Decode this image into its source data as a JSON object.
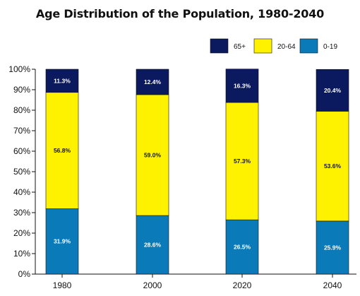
{
  "chart_data": {
    "type": "bar",
    "stacked": true,
    "title": "Age Distribution of the Population, 1980-2040",
    "categories": [
      "1980",
      "2000",
      "2020",
      "2040"
    ],
    "series": [
      {
        "name": "0-19",
        "color": "#0a7ab8",
        "values": [
          31.9,
          28.6,
          26.5,
          25.9
        ],
        "labels": [
          "31.9%",
          "28.6%",
          "26.5%",
          "25.9%"
        ]
      },
      {
        "name": "20-64",
        "color": "#fff200",
        "values": [
          56.8,
          59.0,
          57.3,
          53.6
        ],
        "labels": [
          "56.8%",
          "59.0%",
          "57.3%",
          "53.6%"
        ]
      },
      {
        "name": "65+",
        "color": "#0b1a5e",
        "values": [
          11.3,
          12.4,
          16.3,
          20.4
        ],
        "labels": [
          "11.3%",
          "12.4%",
          "16.3%",
          "20.4%"
        ]
      }
    ],
    "legend_order": [
      "65+",
      "20-64",
      "0-19"
    ],
    "yticks": [
      "0%",
      "10%",
      "20%",
      "30%",
      "40%",
      "50%",
      "60%",
      "70%",
      "80%",
      "90%",
      "100%"
    ],
    "ylim": [
      0,
      100
    ],
    "grid": false,
    "legend_position": "top-right"
  }
}
